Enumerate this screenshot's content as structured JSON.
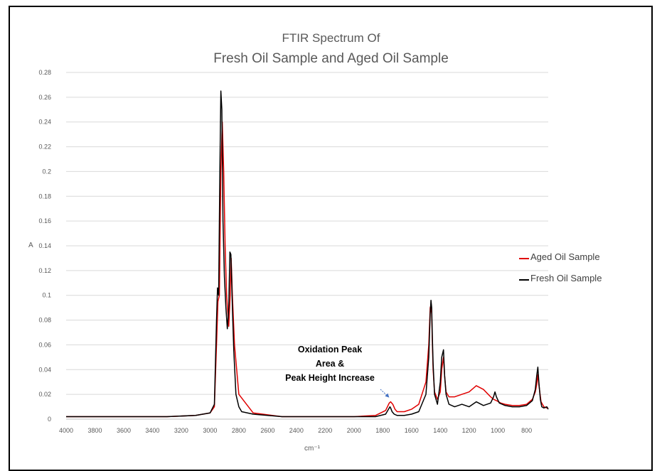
{
  "chart_data": {
    "type": "line",
    "title_line1": "FTIR Spectrum Of",
    "title_line2": "Fresh Oil Sample and Aged Oil Sample",
    "xlabel": "cm⁻¹",
    "ylabel": "A",
    "xlim": [
      4000,
      650
    ],
    "ylim": [
      0,
      0.28
    ],
    "grid": true,
    "legend_position": "right",
    "x_ticks": [
      4000,
      3800,
      3600,
      3400,
      3200,
      3000,
      2800,
      2600,
      2400,
      2200,
      2000,
      1800,
      1600,
      1400,
      1200,
      1000,
      800
    ],
    "y_ticks": [
      0,
      0.02,
      0.04,
      0.06,
      0.08,
      0.1,
      0.12,
      0.14,
      0.16,
      0.18,
      0.2,
      0.22,
      0.24,
      0.26,
      0.28
    ],
    "series": [
      {
        "name": "Aged Oil Sample",
        "color": "#e00000",
        "x": [
          4000,
          3500,
          3300,
          3100,
          3000,
          2970,
          2955,
          2945,
          2935,
          2925,
          2915,
          2905,
          2895,
          2885,
          2870,
          2860,
          2853,
          2845,
          2830,
          2800,
          2700,
          2500,
          2200,
          2000,
          1850,
          1780,
          1755,
          1745,
          1730,
          1715,
          1700,
          1650,
          1600,
          1550,
          1500,
          1480,
          1470,
          1465,
          1460,
          1455,
          1450,
          1440,
          1420,
          1400,
          1390,
          1378,
          1370,
          1360,
          1340,
          1300,
          1250,
          1200,
          1160,
          1150,
          1100,
          1050,
          1030,
          1010,
          980,
          950,
          900,
          850,
          800,
          760,
          740,
          730,
          722,
          715,
          700,
          680,
          660,
          650
        ],
        "y": [
          0.002,
          0.002,
          0.002,
          0.003,
          0.005,
          0.01,
          0.06,
          0.095,
          0.1,
          0.2,
          0.24,
          0.2,
          0.14,
          0.1,
          0.075,
          0.1,
          0.13,
          0.1,
          0.06,
          0.02,
          0.005,
          0.002,
          0.002,
          0.002,
          0.003,
          0.007,
          0.013,
          0.014,
          0.012,
          0.008,
          0.006,
          0.006,
          0.008,
          0.012,
          0.03,
          0.06,
          0.09,
          0.092,
          0.085,
          0.06,
          0.04,
          0.022,
          0.016,
          0.022,
          0.04,
          0.05,
          0.035,
          0.022,
          0.018,
          0.018,
          0.02,
          0.022,
          0.026,
          0.027,
          0.024,
          0.018,
          0.016,
          0.015,
          0.013,
          0.012,
          0.011,
          0.011,
          0.012,
          0.016,
          0.022,
          0.028,
          0.036,
          0.028,
          0.014,
          0.01,
          0.009,
          0.009
        ]
      },
      {
        "name": "Fresh Oil Sample",
        "color": "#000000",
        "x": [
          4000,
          3500,
          3300,
          3100,
          3000,
          2970,
          2955,
          2948,
          2940,
          2932,
          2925,
          2918,
          2910,
          2900,
          2890,
          2880,
          2870,
          2862,
          2855,
          2850,
          2845,
          2835,
          2820,
          2800,
          2780,
          2700,
          2500,
          2200,
          2000,
          1850,
          1780,
          1760,
          1750,
          1745,
          1735,
          1720,
          1700,
          1650,
          1600,
          1550,
          1500,
          1480,
          1470,
          1465,
          1460,
          1455,
          1450,
          1440,
          1420,
          1400,
          1390,
          1378,
          1370,
          1360,
          1340,
          1300,
          1250,
          1200,
          1150,
          1100,
          1050,
          1030,
          1020,
          1010,
          990,
          950,
          900,
          850,
          800,
          760,
          740,
          730,
          722,
          715,
          705,
          695,
          680,
          660,
          650
        ],
        "y": [
          0.002,
          0.002,
          0.002,
          0.003,
          0.005,
          0.012,
          0.08,
          0.106,
          0.1,
          0.2,
          0.265,
          0.25,
          0.16,
          0.115,
          0.09,
          0.073,
          0.09,
          0.135,
          0.133,
          0.115,
          0.09,
          0.055,
          0.02,
          0.01,
          0.006,
          0.004,
          0.002,
          0.002,
          0.002,
          0.002,
          0.004,
          0.008,
          0.01,
          0.009,
          0.006,
          0.004,
          0.003,
          0.003,
          0.004,
          0.006,
          0.02,
          0.05,
          0.085,
          0.096,
          0.09,
          0.065,
          0.045,
          0.02,
          0.012,
          0.03,
          0.05,
          0.056,
          0.035,
          0.02,
          0.012,
          0.01,
          0.012,
          0.01,
          0.014,
          0.011,
          0.013,
          0.018,
          0.022,
          0.018,
          0.013,
          0.011,
          0.01,
          0.01,
          0.011,
          0.015,
          0.024,
          0.035,
          0.042,
          0.03,
          0.016,
          0.01,
          0.009,
          0.01,
          0.008
        ]
      }
    ],
    "annotation": {
      "lines": [
        "Oxidation Peak",
        "Area &",
        "Peak Height  Increase"
      ],
      "arrow_color": "#4472c4",
      "target_x": 1745,
      "target_y": 0.014
    }
  }
}
